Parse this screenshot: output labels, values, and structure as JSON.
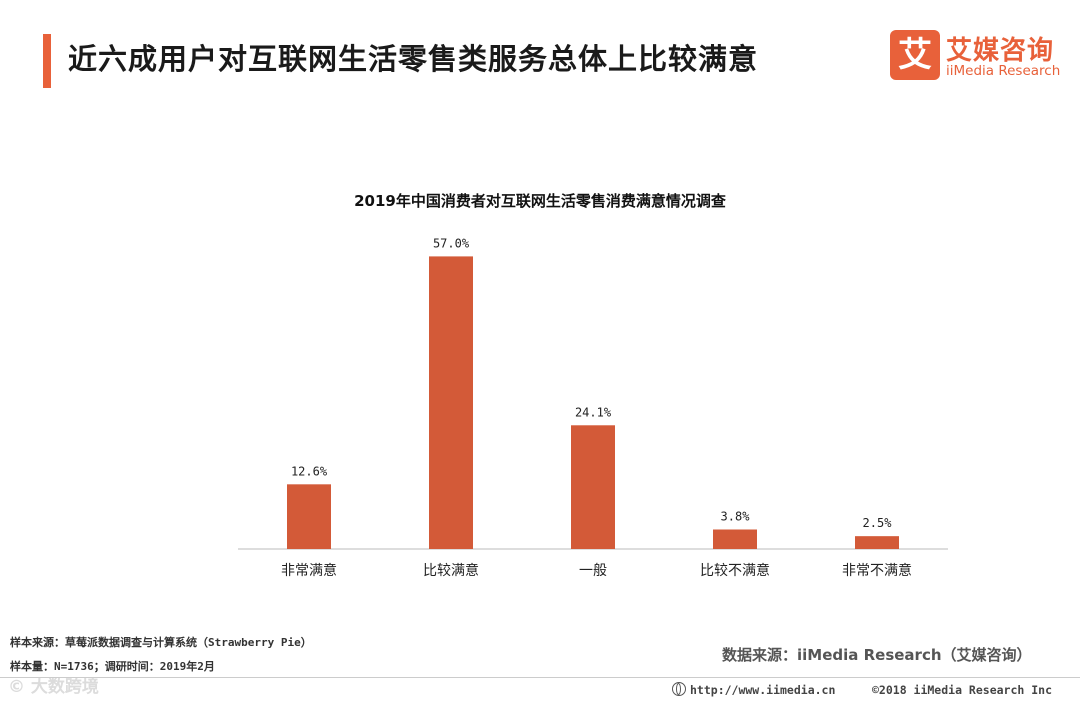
{
  "header": {
    "title": "近六成用户对互联网生活零售类服务总体上比较满意",
    "logo_mark": "艾",
    "logo_cn": "艾媒咨询",
    "logo_en": "iiMedia Research"
  },
  "colors": {
    "accent": "#e8613a",
    "bar": "#d35a38",
    "axis": "#bbbbbb"
  },
  "chart_data": {
    "type": "bar",
    "title": "2019年中国消费者对互联网生活零售消费满意情况调查",
    "categories": [
      "非常满意",
      "比较满意",
      "一般",
      "比较不满意",
      "非常不满意"
    ],
    "values": [
      12.6,
      57.0,
      24.1,
      3.8,
      2.5
    ],
    "data_labels": [
      "12.6%",
      "57.0%",
      "24.1%",
      "3.8%",
      "2.5%"
    ],
    "unit": "%",
    "ylim": [
      0,
      60
    ],
    "grid": false,
    "legend": "none"
  },
  "notes": {
    "sample_source": "样本来源：草莓派数据调查与计算系统（Strawberry  Pie）",
    "sample_size": "样本量：N=1736；调研时间：2019年2月"
  },
  "source": "数据来源：iiMedia Research（艾媒咨询）",
  "footer": {
    "url": "http://www.iimedia.cn",
    "copyright": "©2018  iiMedia Research  Inc",
    "watermark": "©  大数跨境"
  }
}
